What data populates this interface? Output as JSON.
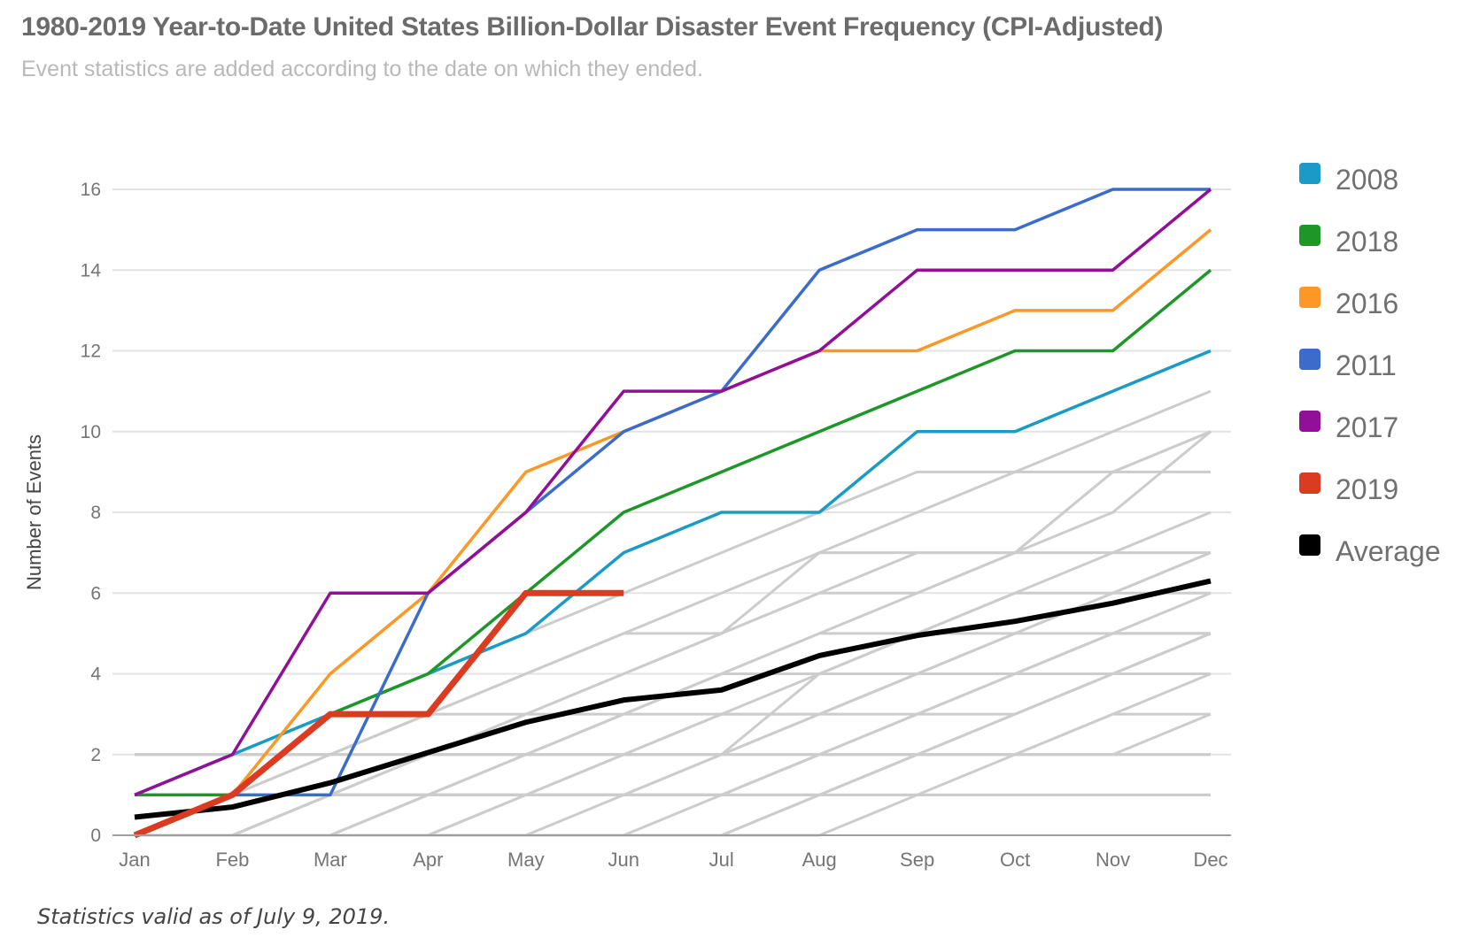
{
  "header": {
    "title": "1980-2019 Year-to-Date United States Billion-Dollar Disaster Event Frequency (CPI-Adjusted)",
    "subtitle": "Event statistics are added according to the date on which they ended."
  },
  "footer": {
    "note": "Statistics valid as of July 9, 2019."
  },
  "chart_data": {
    "type": "line",
    "title": "1980-2019 Year-to-Date United States Billion-Dollar Disaster Event Frequency (CPI-Adjusted)",
    "subtitle": "Event statistics are added according to the date on which they ended.",
    "xlabel": "",
    "ylabel": "Number of Events",
    "categories": [
      "Jan",
      "Feb",
      "Mar",
      "Apr",
      "May",
      "Jun",
      "Jul",
      "Aug",
      "Sep",
      "Oct",
      "Nov",
      "Dec"
    ],
    "ylim": [
      0,
      16
    ],
    "yticks": [
      0,
      2,
      4,
      6,
      8,
      10,
      12,
      14,
      16
    ],
    "grid": true,
    "legend_position": "right",
    "series": [
      {
        "name": "2008",
        "color": "#1a9bc7",
        "highlight": true,
        "values": [
          1,
          2,
          3,
          4,
          5,
          7,
          8,
          8,
          10,
          10,
          11,
          12
        ]
      },
      {
        "name": "2018",
        "color": "#1f9628",
        "highlight": true,
        "values": [
          1,
          1,
          3,
          4,
          6,
          8,
          9,
          10,
          11,
          12,
          12,
          14
        ]
      },
      {
        "name": "2016",
        "color": "#fd9827",
        "highlight": true,
        "values": [
          0,
          1,
          4,
          6,
          9,
          10,
          11,
          12,
          12,
          13,
          13,
          15
        ]
      },
      {
        "name": "2011",
        "color": "#3b6ccc",
        "highlight": true,
        "values": [
          0,
          1,
          1,
          6,
          8,
          10,
          11,
          14,
          15,
          15,
          16,
          16
        ]
      },
      {
        "name": "2017",
        "color": "#920f98",
        "highlight": true,
        "values": [
          1,
          2,
          6,
          6,
          8,
          11,
          11,
          12,
          14,
          14,
          14,
          16
        ]
      },
      {
        "name": "2019",
        "color": "#da3b21",
        "highlight": true,
        "values": [
          0,
          1,
          3,
          3,
          6,
          6
        ]
      },
      {
        "name": "Average",
        "color": "#000000",
        "highlight": true,
        "values": [
          0.45,
          0.7,
          1.3,
          2.05,
          2.8,
          3.35,
          3.6,
          4.45,
          4.95,
          5.3,
          5.75,
          6.3
        ]
      }
    ],
    "background_series_color": "#cccccc",
    "background_series": [
      [
        1,
        2,
        3,
        4,
        5,
        6,
        7,
        8,
        9,
        9,
        10,
        11
      ],
      [
        1,
        1,
        2,
        3,
        4,
        5,
        6,
        7,
        8,
        9,
        9,
        10
      ],
      [
        0,
        1,
        2,
        3,
        4,
        5,
        5,
        6,
        7,
        7,
        9,
        10
      ],
      [
        0,
        0,
        1,
        2,
        3,
        4,
        5,
        7,
        7,
        7,
        8,
        10
      ],
      [
        0,
        0,
        1,
        2,
        2,
        3,
        4,
        5,
        6,
        7,
        9,
        9
      ],
      [
        2,
        2,
        2,
        3,
        3,
        4,
        5,
        6,
        6,
        7,
        7,
        8
      ],
      [
        1,
        1,
        1,
        2,
        3,
        3,
        4,
        5,
        5,
        6,
        7,
        7
      ],
      [
        0,
        0,
        1,
        1,
        2,
        3,
        4,
        4,
        5,
        6,
        6,
        7
      ],
      [
        0,
        0,
        0,
        1,
        2,
        2,
        3,
        4,
        5,
        5,
        6,
        7
      ],
      [
        0,
        0,
        0,
        0,
        1,
        2,
        2,
        4,
        4,
        5,
        6,
        6
      ],
      [
        1,
        1,
        1,
        1,
        2,
        2,
        3,
        3,
        4,
        5,
        5,
        6
      ],
      [
        0,
        0,
        1,
        1,
        1,
        2,
        2,
        3,
        4,
        4,
        5,
        5
      ],
      [
        0,
        0,
        0,
        1,
        1,
        1,
        2,
        3,
        3,
        4,
        5,
        5
      ],
      [
        2,
        2,
        2,
        2,
        2,
        3,
        3,
        3,
        4,
        4,
        5,
        5
      ],
      [
        0,
        0,
        0,
        0,
        1,
        1,
        1,
        2,
        3,
        4,
        4,
        5
      ],
      [
        0,
        0,
        0,
        0,
        0,
        1,
        1,
        2,
        2,
        3,
        4,
        5
      ],
      [
        1,
        1,
        1,
        1,
        1,
        1,
        1,
        2,
        3,
        3,
        4,
        5
      ],
      [
        0,
        0,
        0,
        0,
        0,
        0,
        0,
        1,
        2,
        3,
        4,
        4
      ],
      [
        0,
        0,
        0,
        0,
        0,
        0,
        0,
        1,
        2,
        2,
        3,
        4
      ],
      [
        0,
        0,
        1,
        1,
        1,
        1,
        2,
        2,
        2,
        2,
        3,
        3
      ],
      [
        0,
        0,
        0,
        0,
        0,
        0,
        1,
        1,
        2,
        2,
        2,
        3
      ],
      [
        0,
        0,
        0,
        1,
        1,
        1,
        1,
        1,
        1,
        2,
        2,
        2
      ],
      [
        1,
        1,
        1,
        1,
        1,
        1,
        1,
        1,
        1,
        1,
        1,
        1
      ],
      [
        2,
        2,
        2,
        2,
        2,
        2,
        2,
        2,
        2,
        2,
        2,
        2
      ],
      [
        0,
        0,
        0,
        0,
        0,
        0,
        0,
        0,
        1,
        1,
        1,
        1
      ]
    ]
  },
  "legend": {
    "items": [
      {
        "label": "2008",
        "color": "#1a9bc7"
      },
      {
        "label": "2018",
        "color": "#1f9628"
      },
      {
        "label": "2016",
        "color": "#fd9827"
      },
      {
        "label": "2011",
        "color": "#3b6ccc"
      },
      {
        "label": "2017",
        "color": "#920f98"
      },
      {
        "label": "2019",
        "color": "#da3b21"
      },
      {
        "label": "Average",
        "color": "#000000"
      }
    ]
  }
}
